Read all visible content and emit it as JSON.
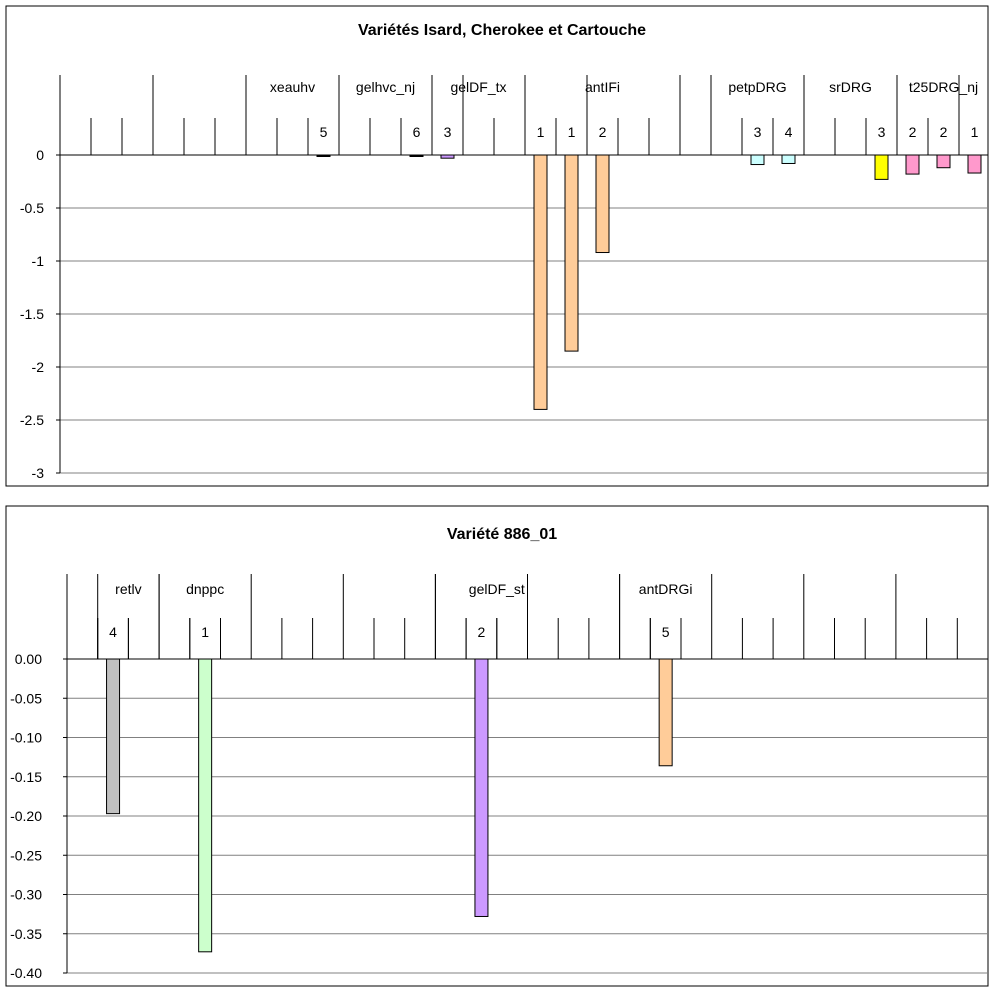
{
  "chart_data": [
    {
      "type": "bar",
      "title": "Variétés Isard, Cherokee et Cartouche",
      "ylim": [
        -3,
        0
      ],
      "yticks": [
        "0",
        "-0.5",
        "-1",
        "-1.5",
        "-2",
        "-2.5",
        "-3"
      ],
      "yvalues": [
        0,
        -0.5,
        -1,
        -1.5,
        -2,
        -2.5,
        -3
      ],
      "grid": true,
      "group_labels": [
        "xeauhv",
        "gelhvc_nj",
        "gelDF_tx",
        "antIFi",
        "petpDRG",
        "srDRG",
        "t25DRG_nj"
      ],
      "bars": [
        {
          "label": "5",
          "value": -0.01,
          "color": "#000000"
        },
        {
          "label": "6",
          "value": -0.01,
          "color": "#000000"
        },
        {
          "label": "3",
          "value": -0.03,
          "color": "#cc99ff"
        },
        {
          "label": "1",
          "value": -2.4,
          "color": "#ffcc99"
        },
        {
          "label": "1",
          "value": -1.85,
          "color": "#ffcc99"
        },
        {
          "label": "2",
          "value": -0.92,
          "color": "#ffcc99"
        },
        {
          "label": "3",
          "value": -0.09,
          "color": "#ccffff"
        },
        {
          "label": "4",
          "value": -0.08,
          "color": "#ccffff"
        },
        {
          "label": "3",
          "value": -0.23,
          "color": "#ffff00"
        },
        {
          "label": "2",
          "value": -0.18,
          "color": "#ff99cc"
        },
        {
          "label": "2",
          "value": -0.12,
          "color": "#ff99cc"
        },
        {
          "label": "1",
          "value": -0.17,
          "color": "#ff99cc"
        }
      ]
    },
    {
      "type": "bar",
      "title": "Variété 886_01",
      "ylim": [
        -0.4,
        0
      ],
      "yticks": [
        "0.00",
        "-0.05",
        "-0.10",
        "-0.15",
        "-0.20",
        "-0.25",
        "-0.30",
        "-0.35",
        "-0.40"
      ],
      "yvalues": [
        0,
        -0.05,
        -0.1,
        -0.15,
        -0.2,
        -0.25,
        -0.3,
        -0.35,
        -0.4
      ],
      "grid": true,
      "group_labels": [
        "retlv",
        "dnppc",
        "gelDF_st",
        "antDRGi"
      ],
      "bars": [
        {
          "label": "4",
          "value": -0.197,
          "color": "#c0c0c0"
        },
        {
          "label": "1",
          "value": -0.373,
          "color": "#ccffcc"
        },
        {
          "label": "2",
          "value": -0.328,
          "color": "#cc99ff"
        },
        {
          "label": "5",
          "value": -0.136,
          "color": "#ffcc99"
        }
      ]
    }
  ]
}
